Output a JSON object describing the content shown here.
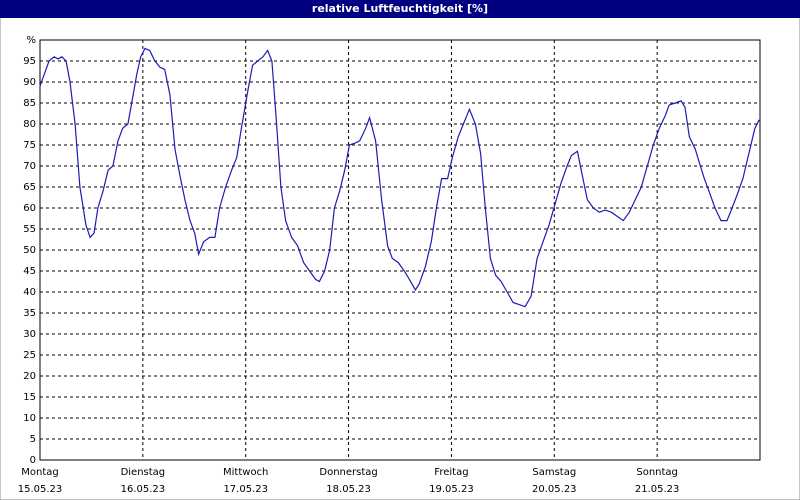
{
  "chart_data": {
    "type": "line",
    "title": "relative Luftfeuchtigkeit [%]",
    "xlim": [
      0,
      168
    ],
    "xticks": [
      {
        "value": 0,
        "label": "Montag"
      },
      {
        "value": 24,
        "label": "Dienstag"
      },
      {
        "value": 48,
        "label": "Mittwoch"
      },
      {
        "value": 72,
        "label": "Donnerstag"
      },
      {
        "value": 96,
        "label": "Freitag"
      },
      {
        "value": 120,
        "label": "Samstag"
      },
      {
        "value": 144,
        "label": "Sonntag"
      }
    ],
    "xtick_dates": [
      "15.05.23",
      "16.05.23",
      "17.05.23",
      "18.05.23",
      "19.05.23",
      "20.05.23",
      "21.05.23"
    ],
    "ylim": [
      0,
      100
    ],
    "yticks": [
      0,
      5,
      10,
      15,
      20,
      25,
      30,
      35,
      40,
      45,
      50,
      55,
      60,
      65,
      70,
      75,
      80,
      85,
      90,
      95,
      {
        "value": 100,
        "label": "%"
      }
    ],
    "grid": true,
    "series": [
      {
        "color": "#1c1cb4",
        "x": [
          0,
          1.4,
          2.1,
          3.3,
          4.2,
          5.1,
          6.1,
          7.0,
          8.2,
          9.3,
          10.7,
          11.7,
          12.6,
          13.5,
          14.7,
          15.9,
          17.0,
          18.2,
          19.3,
          20.5,
          21.4,
          22.6,
          23.5,
          24.5,
          25.6,
          26.8,
          28.0,
          29.1,
          30.3,
          31.5,
          32.6,
          33.8,
          35.0,
          36.1,
          37.0,
          38.2,
          39.6,
          40.8,
          41.9,
          43.3,
          44.7,
          45.9,
          47.0,
          48.5,
          49.6,
          50.8,
          52.0,
          53.1,
          54.1,
          55.0,
          56.2,
          57.3,
          58.7,
          60.1,
          61.5,
          62.9,
          64.3,
          65.2,
          66.4,
          67.6,
          68.7,
          69.9,
          71.1,
          72.2,
          73.6,
          74.6,
          76.0,
          76.9,
          78.3,
          79.7,
          81.1,
          82.2,
          83.6,
          85.0,
          86.2,
          87.6,
          88.5,
          89.9,
          91.3,
          92.5,
          93.7,
          95.1,
          96.2,
          97.6,
          98.8,
          100.2,
          101.6,
          102.8,
          103.9,
          105.1,
          106.3,
          107.6,
          109.0,
          110.4,
          111.8,
          113.2,
          114.6,
          116.0,
          117.4,
          118.8,
          120.2,
          121.6,
          123.0,
          124.0,
          125.4,
          126.5,
          127.7,
          129.1,
          130.5,
          131.9,
          133.3,
          134.7,
          136.1,
          137.5,
          138.9,
          140.3,
          141.7,
          143.1,
          144.5,
          145.9,
          146.8,
          148.2,
          149.6,
          150.5,
          151.5,
          152.9,
          153.8,
          155.0,
          156.1,
          157.5,
          158.9,
          160.3,
          161.5,
          162.6,
          164.0,
          165.4,
          166.8,
          167.8
        ],
        "values": [
          89,
          93,
          95,
          96,
          95.5,
          96,
          95,
          90,
          80,
          65,
          56,
          53,
          54,
          60,
          64,
          69,
          70,
          76,
          79,
          80,
          85,
          92,
          96,
          98,
          97.5,
          95,
          93.5,
          93,
          87,
          74,
          68,
          62,
          57,
          54,
          49,
          52,
          53,
          53,
          60,
          65,
          69,
          72,
          79,
          88,
          94,
          95,
          96,
          97.5,
          95,
          83,
          65,
          57,
          53,
          51,
          47,
          45,
          43,
          42.5,
          45,
          50,
          60,
          64,
          69,
          75,
          75.5,
          76,
          79,
          81.5,
          76,
          62,
          51,
          48,
          47,
          45,
          43,
          40.5,
          42,
          46,
          52,
          60,
          67,
          67,
          72,
          77,
          80,
          83.5,
          80,
          73,
          60,
          48,
          44,
          42.5,
          40,
          37.5,
          37,
          36.5,
          39,
          48,
          52,
          56,
          61,
          66,
          70,
          72.5,
          73.5,
          68,
          62,
          60,
          59,
          59.5,
          59,
          58,
          57,
          59,
          62,
          65,
          70,
          75,
          79,
          82,
          84.5,
          85,
          85.5,
          84,
          77,
          74,
          71,
          67,
          64,
          60,
          57,
          57,
          60,
          63,
          67,
          73,
          79,
          81
        ]
      }
    ]
  }
}
